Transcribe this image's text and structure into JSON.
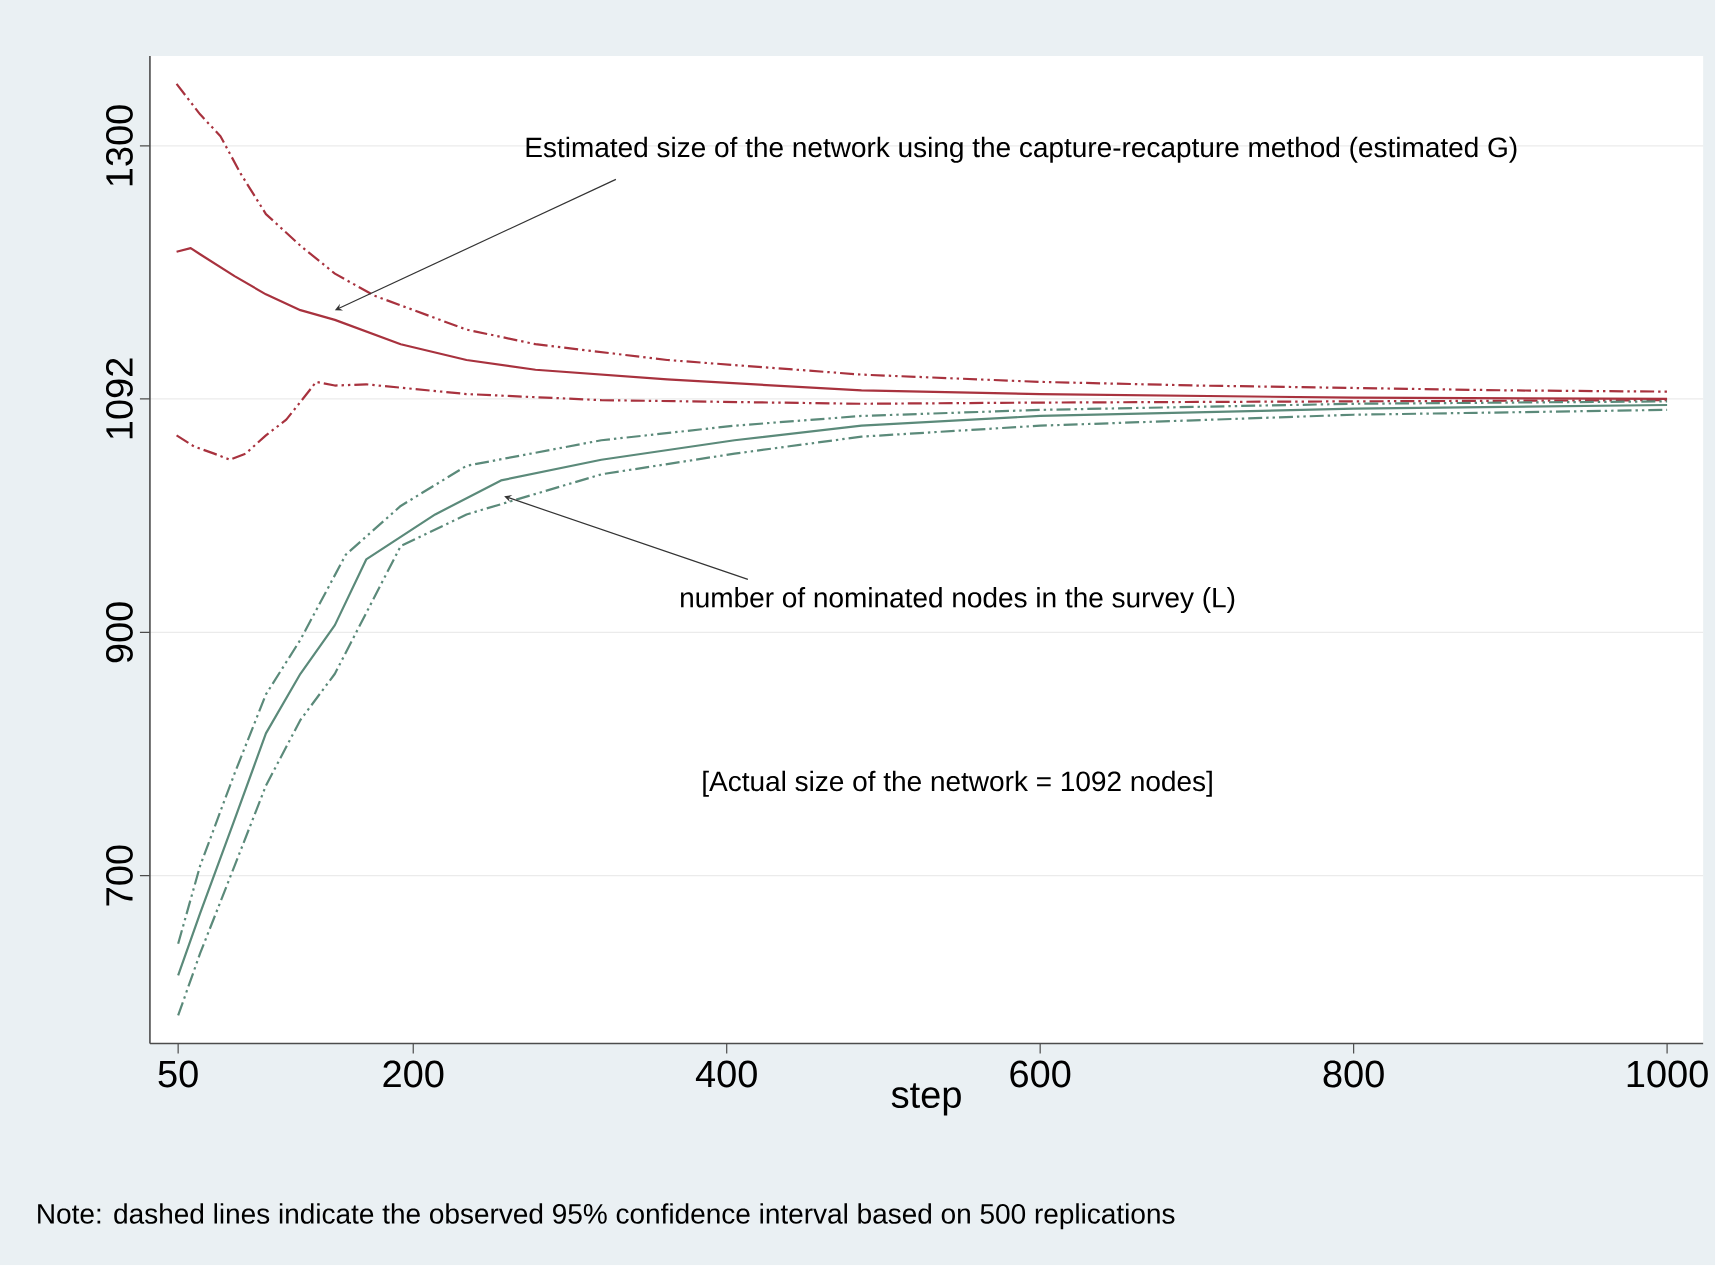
{
  "chart_data": {
    "type": "line",
    "xlabel": "step",
    "xlim": [
      32,
      1023
    ],
    "ylim": [
      562,
      1374
    ],
    "xticks": [
      50,
      200,
      400,
      600,
      800,
      1000
    ],
    "yticks": [
      700,
      900,
      1092,
      1300
    ],
    "grid": "y",
    "series": [
      {
        "color": "#a8323e",
        "line_style": "solid",
        "x": [
          49,
          58,
          64,
          86,
          106,
          128,
          150,
          192,
          234,
          278,
          362,
          486,
          600,
          800,
          1000
        ],
        "values": [
          1213,
          1216,
          1211,
          1193,
          1178,
          1165,
          1157,
          1137,
          1124,
          1116,
          1108,
          1099,
          1096,
          1093,
          1092
        ]
      },
      {
        "color": "#a8323e",
        "line_style": "dashed",
        "x": [
          49,
          64,
          77,
          90,
          106,
          128,
          150,
          175,
          234,
          278,
          362,
          486,
          600,
          700,
          800,
          900,
          1000
        ],
        "values": [
          1351,
          1326,
          1308,
          1277,
          1244,
          1218,
          1195,
          1177,
          1149,
          1137,
          1124,
          1112,
          1106,
          1103,
          1101,
          1099,
          1098
        ]
      },
      {
        "color": "#a8323e",
        "line_style": "dashed",
        "x": [
          49,
          60,
          73,
          83,
          93,
          106,
          119,
          132,
          138,
          150,
          170,
          234,
          320,
          486,
          600,
          800,
          1000
        ],
        "values": [
          1062,
          1053,
          1047,
          1042,
          1047,
          1062,
          1075,
          1096,
          1106,
          1103,
          1104,
          1096,
          1091,
          1088,
          1089,
          1090,
          1091
        ]
      },
      {
        "color": "#5b8a7a",
        "line_style": "solid",
        "x": [
          50,
          64,
          86,
          106,
          128,
          150,
          170,
          214,
          256,
          320,
          405,
          486,
          600,
          800,
          1000
        ],
        "values": [
          618,
          669,
          746,
          817,
          866,
          906,
          960,
          997,
          1025,
          1042,
          1058,
          1070,
          1078,
          1084,
          1087
        ]
      },
      {
        "color": "#5b8a7a",
        "line_style": "dashed",
        "x": [
          50,
          64,
          86,
          106,
          128,
          157,
          192,
          234,
          320,
          405,
          486,
          600,
          800,
          1000
        ],
        "values": [
          644,
          708,
          784,
          849,
          894,
          964,
          1004,
          1037,
          1058,
          1070,
          1078,
          1083,
          1088,
          1090
        ]
      },
      {
        "color": "#5b8a7a",
        "line_style": "dashed",
        "x": [
          50,
          64,
          86,
          106,
          128,
          150,
          192,
          234,
          320,
          405,
          486,
          600,
          800,
          1000
        ],
        "values": [
          585,
          636,
          708,
          774,
          828,
          866,
          971,
          997,
          1030,
          1047,
          1061,
          1070,
          1079,
          1083
        ]
      }
    ],
    "annotations": [
      {
        "text": "Estimated size of the network using the capture-recapture method (estimated G)",
        "x": 150,
        "y": 1165
      },
      {
        "text": "number of nominated nodes in the survey (L)",
        "x": 258,
        "y": 1012
      },
      "[Actual size of the network = 1092 nodes]",
      "Note: dashed lines indicate the observed 95% confidence interval based on 500 replications"
    ]
  }
}
